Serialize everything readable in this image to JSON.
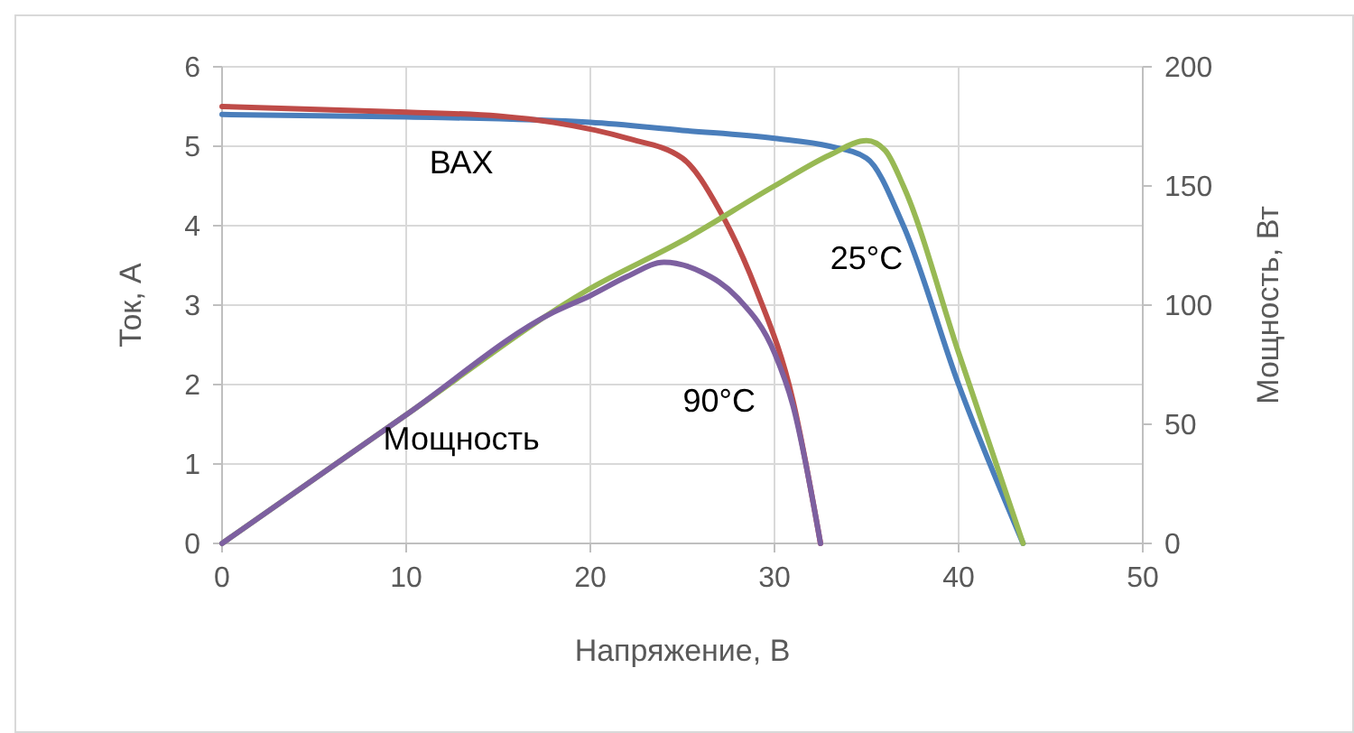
{
  "chart_data": {
    "type": "line",
    "xlabel": "Напряжение, В",
    "ylabel": "Ток, А",
    "y2label": "Мощность, Вт",
    "xlim": [
      0,
      50
    ],
    "xticks": [
      0,
      10,
      20,
      30,
      40,
      50
    ],
    "ylim": [
      0,
      6
    ],
    "yticks": [
      0,
      1,
      2,
      3,
      4,
      5,
      6
    ],
    "y2lim": [
      0,
      200
    ],
    "y2ticks": [
      0,
      50,
      100,
      150,
      200
    ],
    "grid": true,
    "marker": "none",
    "line_style": "solid",
    "series": [
      {
        "color": "#4a7ebb",
        "x": [
          0,
          10,
          20,
          25,
          30,
          33,
          35,
          37,
          40,
          43.5
        ],
        "values": [
          5.4,
          5.37,
          5.3,
          5.2,
          5.1,
          5.0,
          4.85,
          4.0,
          2.0,
          0
        ]
      },
      {
        "color": "#be4b48",
        "x": [
          0,
          10,
          15,
          18,
          22,
          25,
          27,
          29,
          31,
          32.5
        ],
        "values": [
          5.5,
          5.43,
          5.38,
          5.3,
          5.1,
          4.85,
          4.2,
          3.2,
          1.8,
          0
        ]
      },
      {
        "color": "#98b954",
        "axis": "y2",
        "x": [
          0,
          10,
          20,
          25,
          30,
          33,
          35,
          36,
          37,
          40,
          43.5
        ],
        "values": [
          0,
          54,
          107,
          127,
          150,
          163,
          169,
          165,
          150,
          80,
          0
        ]
      },
      {
        "color": "#7d60a0",
        "axis": "y2",
        "x": [
          0,
          10,
          18,
          20,
          22,
          24,
          26,
          28,
          30,
          31,
          32.5
        ],
        "values": [
          0,
          54,
          97,
          104,
          112,
          118,
          114,
          103,
          80,
          58,
          0
        ]
      }
    ],
    "annotations": [
      "ВАХ",
      "25°C",
      "90°C",
      "Мощность"
    ]
  }
}
